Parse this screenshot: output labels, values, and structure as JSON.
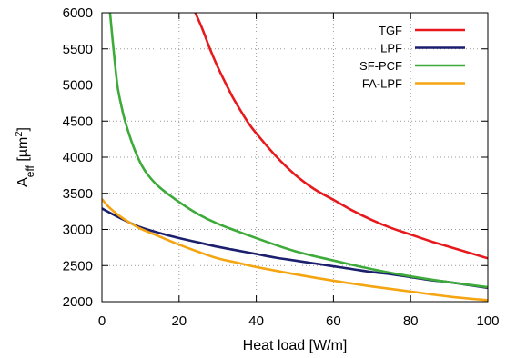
{
  "chart_data": {
    "type": "line",
    "xlabel": "Heat load [W/m]",
    "ylabel": {
      "main": "A",
      "sub": "eff",
      "unit_open": " [µm",
      "sup": "2",
      "unit_close": "]"
    },
    "xlim": [
      0,
      100
    ],
    "ylim": [
      2000,
      6000
    ],
    "x_ticks": [
      0,
      20,
      40,
      60,
      80,
      100
    ],
    "y_ticks": [
      2000,
      2500,
      3000,
      3500,
      4000,
      4500,
      5000,
      5500,
      6000
    ],
    "x_tick_labels": [
      "0",
      "20",
      "40",
      "60",
      "80",
      "100"
    ],
    "y_tick_labels": [
      "2000",
      "2500",
      "3000",
      "3500",
      "4000",
      "4500",
      "5000",
      "5500",
      "6000"
    ],
    "grid": true,
    "legend_position": "top-right",
    "series": [
      {
        "name": "TGF",
        "color": "#e8191c",
        "x": [
          24.2,
          26,
          28,
          30,
          32,
          34,
          36,
          38,
          40,
          45,
          50,
          55,
          60,
          65,
          70,
          75,
          80,
          85,
          90,
          95,
          100
        ],
        "y": [
          6000,
          5780,
          5500,
          5250,
          5030,
          4820,
          4640,
          4470,
          4330,
          4020,
          3760,
          3560,
          3410,
          3260,
          3130,
          3020,
          2930,
          2840,
          2760,
          2680,
          2600
        ]
      },
      {
        "name": "LPF",
        "color": "#1b1f6e",
        "x": [
          0,
          5,
          10,
          15,
          20,
          25,
          30,
          35,
          40,
          45,
          50,
          55,
          60,
          65,
          70,
          75,
          80,
          85,
          90,
          95,
          100
        ],
        "y": [
          3290,
          3150,
          3030,
          2950,
          2880,
          2820,
          2760,
          2710,
          2660,
          2610,
          2570,
          2530,
          2490,
          2450,
          2410,
          2380,
          2340,
          2300,
          2270,
          2230,
          2190
        ]
      },
      {
        "name": "SF-PCF",
        "color": "#3daa3a",
        "x": [
          2.1,
          3,
          4,
          5,
          6,
          8,
          10,
          12,
          15,
          20,
          25,
          30,
          40,
          50,
          60,
          70,
          80,
          90,
          100
        ],
        "y": [
          6000,
          5500,
          5000,
          4720,
          4500,
          4170,
          3920,
          3750,
          3580,
          3380,
          3210,
          3080,
          2880,
          2700,
          2570,
          2450,
          2350,
          2270,
          2200
        ]
      },
      {
        "name": "FA-LPF",
        "color": "#f5a511",
        "x": [
          0,
          2,
          5,
          8,
          10,
          15,
          20,
          25,
          30,
          35,
          40,
          50,
          60,
          70,
          80,
          90,
          100
        ],
        "y": [
          3420,
          3300,
          3170,
          3070,
          3010,
          2900,
          2790,
          2690,
          2600,
          2540,
          2480,
          2380,
          2290,
          2210,
          2140,
          2070,
          2020
        ]
      }
    ]
  }
}
